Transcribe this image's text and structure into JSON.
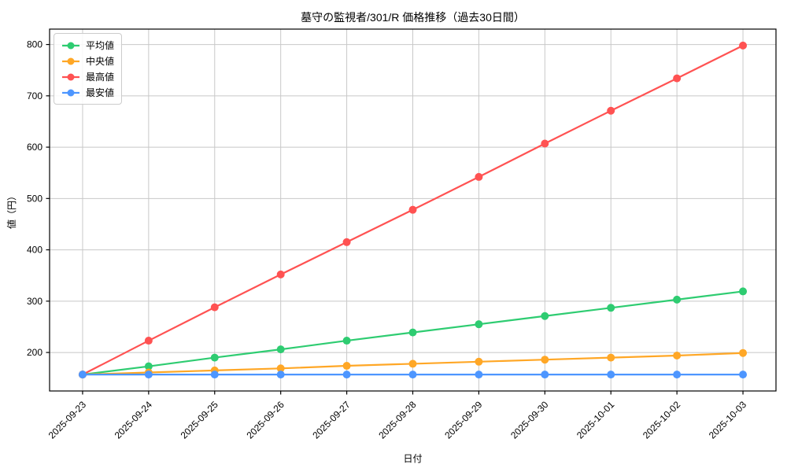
{
  "chart_data": {
    "type": "line",
    "title": "墓守の監視者/301/R 価格推移（過去30日間）",
    "xlabel": "日付",
    "ylabel": "値（円）",
    "categories": [
      "2025-09-23",
      "2025-09-24",
      "2025-09-25",
      "2025-09-26",
      "2025-09-27",
      "2025-09-28",
      "2025-09-29",
      "2025-09-30",
      "2025-10-01",
      "2025-10-02",
      "2025-10-03"
    ],
    "series": [
      {
        "name": "平均値",
        "color": "#2ECC71",
        "values": [
          157,
          173,
          190,
          206,
          223,
          239,
          255,
          271,
          287,
          303,
          319
        ]
      },
      {
        "name": "中央値",
        "color": "#FFA726",
        "values": [
          157,
          161,
          165,
          169,
          174,
          178,
          182,
          186,
          190,
          194,
          199
        ]
      },
      {
        "name": "最高値",
        "color": "#FF5252",
        "values": [
          157,
          223,
          288,
          352,
          415,
          478,
          542,
          607,
          671,
          734,
          798
        ]
      },
      {
        "name": "最安値",
        "color": "#4D96FF",
        "values": [
          157,
          157,
          157,
          157,
          157,
          157,
          157,
          157,
          157,
          157,
          157
        ]
      }
    ],
    "ylim": [
      125,
      830
    ],
    "yticks": [
      200,
      300,
      400,
      500,
      600,
      700,
      800
    ],
    "grid": true,
    "legend_position": "upper left",
    "colors": {
      "grid": "#c8c8c8",
      "axis": "#000000",
      "text": "#000000",
      "background": "#ffffff",
      "legend_border": "#cccccc"
    }
  }
}
